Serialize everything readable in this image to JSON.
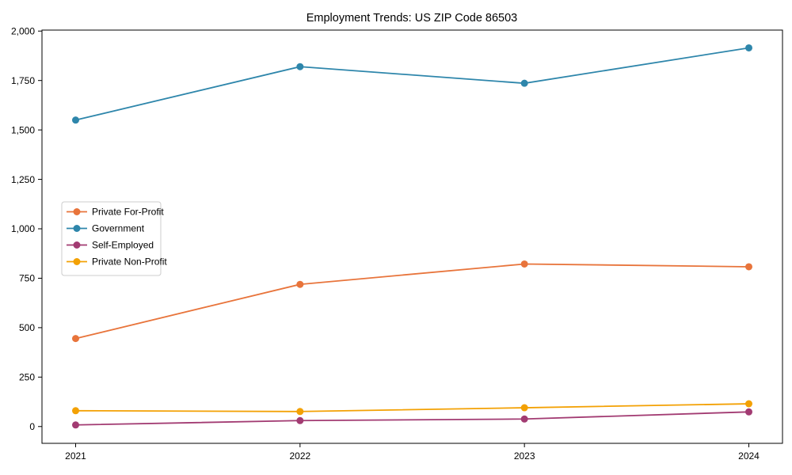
{
  "chart_data": {
    "type": "line",
    "title": "Employment Trends: US ZIP Code 86503",
    "xlabel": "",
    "ylabel": "",
    "x": [
      2021,
      2022,
      2023,
      2024
    ],
    "x_tick_labels": [
      "2021",
      "2022",
      "2023",
      "2024"
    ],
    "y_ticks": [
      0,
      250,
      500,
      750,
      1000,
      1250,
      1500,
      1750,
      2000
    ],
    "y_tick_labels": [
      "0",
      "250",
      "500",
      "750",
      "1,000",
      "1,250",
      "1,500",
      "1,750",
      "2,000"
    ],
    "xlim": [
      2020.85,
      2024.15
    ],
    "ylim": [
      -85,
      2005
    ],
    "grid": false,
    "legend_position": "center-left",
    "marker": "circle",
    "series": [
      {
        "name": "Private For-Profit",
        "color": "#E8743B",
        "values": [
          445,
          719,
          822,
          808
        ]
      },
      {
        "name": "Government",
        "color": "#2E86AB",
        "values": [
          1550,
          1820,
          1736,
          1915
        ]
      },
      {
        "name": "Self-Employed",
        "color": "#A23B72",
        "values": [
          8,
          30,
          38,
          74
        ]
      },
      {
        "name": "Private Non-Profit",
        "color": "#F3A104",
        "values": [
          80,
          76,
          95,
          115
        ]
      }
    ],
    "spine_color": "#000000",
    "background_color": "#ffffff",
    "legend_border_color": "#cccccc"
  }
}
